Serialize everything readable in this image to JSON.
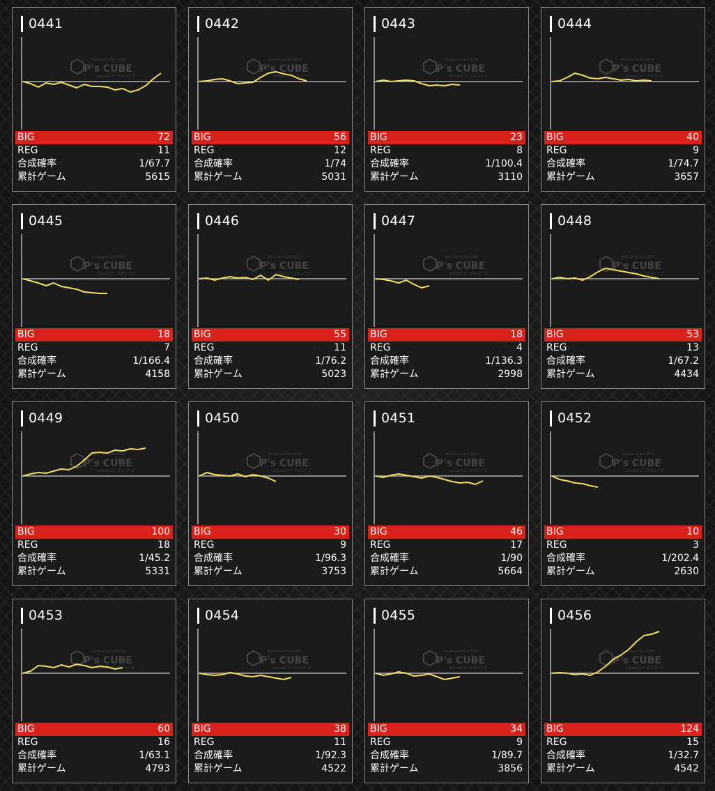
{
  "labels": {
    "big": "BIG",
    "reg": "REG",
    "combined": "合成確率",
    "total": "累計ゲーム"
  },
  "watermark": {
    "small": "Pachinko & Slot DATA",
    "brand": "P's CUBE",
    "sub": "online2 ピーズキューブ"
  },
  "colors": {
    "graph_line": "#f3dd62",
    "big_band": "#d9221c",
    "card_border": "#8a8a8a",
    "axis": "#cfcfcf"
  },
  "machines": [
    {
      "number": "0441",
      "big": "72",
      "reg": "11",
      "combined": "1/67.7",
      "total": "5615",
      "trend": [
        0,
        -3,
        -8,
        -2,
        -4,
        -1,
        -5,
        -9,
        -4,
        -7,
        -7,
        -8,
        -12,
        -10,
        -15,
        -12,
        -6,
        4,
        12
      ]
    },
    {
      "number": "0442",
      "big": "56",
      "reg": "12",
      "combined": "1/74",
      "total": "5031",
      "trend": [
        0,
        1,
        3,
        4,
        1,
        -3,
        -2,
        -1,
        6,
        12,
        14,
        11,
        9,
        4,
        1
      ]
    },
    {
      "number": "0443",
      "big": "23",
      "reg": "8",
      "combined": "1/100.4",
      "total": "3110",
      "trend": [
        0,
        2,
        0,
        1,
        2,
        1,
        -3,
        -6,
        -5,
        -6,
        -4,
        -5
      ]
    },
    {
      "number": "0444",
      "big": "40",
      "reg": "9",
      "combined": "1/74.7",
      "total": "3657",
      "trend": [
        0,
        1,
        6,
        12,
        9,
        5,
        4,
        6,
        4,
        2,
        3,
        1,
        2,
        1
      ]
    },
    {
      "number": "0445",
      "big": "18",
      "reg": "7",
      "combined": "1/166.4",
      "total": "4158",
      "trend": [
        0,
        -3,
        -6,
        -10,
        -6,
        -11,
        -13,
        -15,
        -19,
        -20,
        -21,
        -21
      ]
    },
    {
      "number": "0446",
      "big": "55",
      "reg": "11",
      "combined": "1/76.2",
      "total": "5023",
      "trend": [
        0,
        1,
        -2,
        1,
        3,
        1,
        2,
        -1,
        5,
        -2,
        6,
        3,
        1,
        -1
      ]
    },
    {
      "number": "0447",
      "big": "18",
      "reg": "4",
      "combined": "1/136.3",
      "total": "2998",
      "trend": [
        0,
        -1,
        -3,
        -6,
        -2,
        -8,
        -13,
        -10
      ]
    },
    {
      "number": "0448",
      "big": "53",
      "reg": "13",
      "combined": "1/67.2",
      "total": "4434",
      "trend": [
        0,
        2,
        0,
        1,
        -2,
        3,
        10,
        15,
        13,
        11,
        9,
        7,
        4,
        2,
        0
      ]
    },
    {
      "number": "0449",
      "big": "100",
      "reg": "18",
      "combined": "1/45.2",
      "total": "5331",
      "trend": [
        0,
        3,
        5,
        4,
        7,
        10,
        9,
        14,
        23,
        33,
        34,
        33,
        37,
        36,
        39,
        38,
        40
      ]
    },
    {
      "number": "0450",
      "big": "30",
      "reg": "9",
      "combined": "1/96.3",
      "total": "3753",
      "trend": [
        0,
        5,
        2,
        1,
        0,
        3,
        -1,
        2,
        0,
        -3,
        -8
      ]
    },
    {
      "number": "0451",
      "big": "46",
      "reg": "17",
      "combined": "1/90",
      "total": "5664",
      "trend": [
        0,
        -2,
        1,
        3,
        1,
        -1,
        -3,
        0,
        -2,
        -5,
        -8,
        -10,
        -9,
        -12,
        -7
      ]
    },
    {
      "number": "0452",
      "big": "10",
      "reg": "3",
      "combined": "1/202.4",
      "total": "2630",
      "trend": [
        0,
        -5,
        -7,
        -10,
        -11,
        -14,
        -16
      ]
    },
    {
      "number": "0453",
      "big": "60",
      "reg": "16",
      "combined": "1/63.1",
      "total": "4793",
      "trend": [
        0,
        3,
        11,
        10,
        8,
        12,
        9,
        13,
        11,
        8,
        10,
        9,
        6,
        8
      ]
    },
    {
      "number": "0454",
      "big": "38",
      "reg": "11",
      "combined": "1/92.3",
      "total": "4522",
      "trend": [
        0,
        -2,
        -3,
        -2,
        1,
        -1,
        -4,
        -5,
        -3,
        -5,
        -7,
        -9,
        -6
      ]
    },
    {
      "number": "0455",
      "big": "34",
      "reg": "9",
      "combined": "1/89.7",
      "total": "3856",
      "trend": [
        0,
        -3,
        -1,
        2,
        0,
        -4,
        -3,
        -1,
        -5,
        -9,
        -7,
        -5
      ]
    },
    {
      "number": "0456",
      "big": "124",
      "reg": "15",
      "combined": "1/32.7",
      "total": "4542",
      "trend": [
        0,
        1,
        0,
        -2,
        -1,
        -3,
        2,
        10,
        20,
        26,
        34,
        45,
        54,
        56,
        60
      ]
    }
  ]
}
